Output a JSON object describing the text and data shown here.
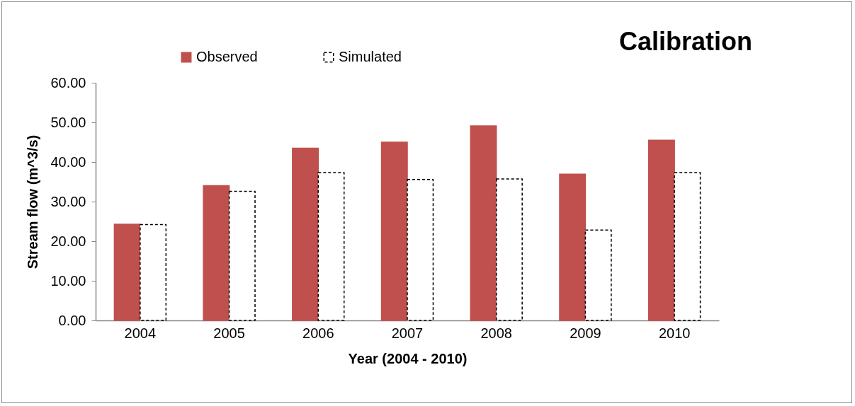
{
  "chart_data": {
    "type": "bar",
    "title": "Calibration",
    "xlabel": "Year (2004  -  2010)",
    "ylabel": "Stream flow (m^3/s)",
    "categories": [
      "2004",
      "2005",
      "2006",
      "2007",
      "2008",
      "2009",
      "2010"
    ],
    "series": [
      {
        "name": "Observed",
        "color": "#c0504d",
        "values": [
          24.3,
          34.0,
          43.5,
          45.0,
          49.1,
          36.9,
          45.5
        ]
      },
      {
        "name": "Simulated",
        "color": "#ffffff",
        "line_style": "dashed",
        "values": [
          24.2,
          32.6,
          37.3,
          35.6,
          35.7,
          22.8,
          37.3
        ]
      }
    ],
    "ylim": [
      0,
      60
    ],
    "yticks": [
      {
        "value": 0,
        "label": "0.00"
      },
      {
        "value": 10,
        "label": "10.00"
      },
      {
        "value": 20,
        "label": "20.00"
      },
      {
        "value": 30,
        "label": "30.00"
      },
      {
        "value": 40,
        "label": "40.00"
      },
      {
        "value": 50,
        "label": "50.00"
      },
      {
        "value": 60,
        "label": "60.00"
      }
    ],
    "grid": false,
    "legend": "top left"
  }
}
